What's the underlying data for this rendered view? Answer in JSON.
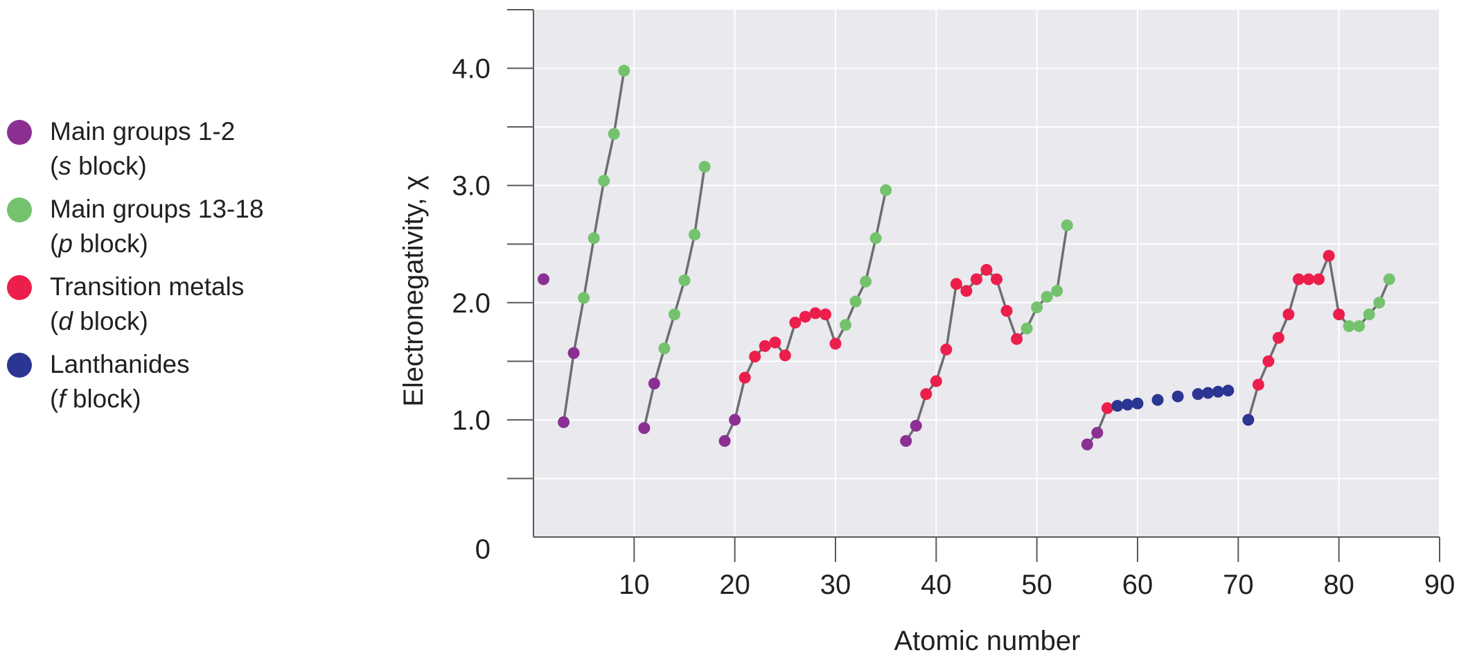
{
  "legend": [
    {
      "line1": "Main groups 1-2",
      "open": "(",
      "italic": "s",
      "rest": " block)",
      "color": "#8b2f93"
    },
    {
      "line1": "Main groups 13-18",
      "open": "(",
      "italic": "p",
      "rest": " block)",
      "color": "#74c26e"
    },
    {
      "line1": "Transition metals",
      "open": "(",
      "italic": "d",
      "rest": " block)",
      "color": "#ec1e4b"
    },
    {
      "line1": "Lanthanides",
      "open": "(",
      "italic": "f",
      "rest": " block)",
      "color": "#2b3592"
    }
  ],
  "chart_data": {
    "type": "scatter",
    "title": "",
    "xlabel": "Atomic number",
    "ylabel": "Electronegativity, χ",
    "xlim": [
      0,
      90
    ],
    "ylim": [
      0,
      4.5
    ],
    "x_ticks": [
      10,
      20,
      30,
      40,
      50,
      60,
      70,
      80,
      90
    ],
    "x_tick_labels": [
      "10",
      "20",
      "30",
      "40",
      "50",
      "60",
      "70",
      "80",
      "90"
    ],
    "y_ticks": [
      0,
      1.0,
      2.0,
      3.0,
      4.0
    ],
    "y_tick_labels": [
      "0",
      "1.0",
      "2.0",
      "3.0",
      "4.0"
    ],
    "y_minor_ticks": [
      0.5,
      1.5,
      2.5,
      3.5
    ],
    "grid": true,
    "legend_position": "left",
    "colors": {
      "s": "#8b2f93",
      "p": "#74c26e",
      "d": "#ec1e4b",
      "f": "#2b3592",
      "line": "#6d6e71",
      "plot_bg": "#e9e9ee"
    },
    "points": [
      {
        "x": 1,
        "y": 2.2,
        "block": "s"
      },
      {
        "x": 3,
        "y": 0.98,
        "block": "s"
      },
      {
        "x": 4,
        "y": 1.57,
        "block": "s"
      },
      {
        "x": 5,
        "y": 2.04,
        "block": "p"
      },
      {
        "x": 6,
        "y": 2.55,
        "block": "p"
      },
      {
        "x": 7,
        "y": 3.04,
        "block": "p"
      },
      {
        "x": 8,
        "y": 3.44,
        "block": "p"
      },
      {
        "x": 9,
        "y": 3.98,
        "block": "p"
      },
      {
        "x": 11,
        "y": 0.93,
        "block": "s"
      },
      {
        "x": 12,
        "y": 1.31,
        "block": "s"
      },
      {
        "x": 13,
        "y": 1.61,
        "block": "p"
      },
      {
        "x": 14,
        "y": 1.9,
        "block": "p"
      },
      {
        "x": 15,
        "y": 2.19,
        "block": "p"
      },
      {
        "x": 16,
        "y": 2.58,
        "block": "p"
      },
      {
        "x": 17,
        "y": 3.16,
        "block": "p"
      },
      {
        "x": 19,
        "y": 0.82,
        "block": "s"
      },
      {
        "x": 20,
        "y": 1.0,
        "block": "s"
      },
      {
        "x": 21,
        "y": 1.36,
        "block": "d"
      },
      {
        "x": 22,
        "y": 1.54,
        "block": "d"
      },
      {
        "x": 23,
        "y": 1.63,
        "block": "d"
      },
      {
        "x": 24,
        "y": 1.66,
        "block": "d"
      },
      {
        "x": 25,
        "y": 1.55,
        "block": "d"
      },
      {
        "x": 26,
        "y": 1.83,
        "block": "d"
      },
      {
        "x": 27,
        "y": 1.88,
        "block": "d"
      },
      {
        "x": 28,
        "y": 1.91,
        "block": "d"
      },
      {
        "x": 29,
        "y": 1.9,
        "block": "d"
      },
      {
        "x": 30,
        "y": 1.65,
        "block": "d"
      },
      {
        "x": 31,
        "y": 1.81,
        "block": "p"
      },
      {
        "x": 32,
        "y": 2.01,
        "block": "p"
      },
      {
        "x": 33,
        "y": 2.18,
        "block": "p"
      },
      {
        "x": 34,
        "y": 2.55,
        "block": "p"
      },
      {
        "x": 35,
        "y": 2.96,
        "block": "p"
      },
      {
        "x": 37,
        "y": 0.82,
        "block": "s"
      },
      {
        "x": 38,
        "y": 0.95,
        "block": "s"
      },
      {
        "x": 39,
        "y": 1.22,
        "block": "d"
      },
      {
        "x": 40,
        "y": 1.33,
        "block": "d"
      },
      {
        "x": 41,
        "y": 1.6,
        "block": "d"
      },
      {
        "x": 42,
        "y": 2.16,
        "block": "d"
      },
      {
        "x": 43,
        "y": 2.1,
        "block": "d"
      },
      {
        "x": 44,
        "y": 2.2,
        "block": "d"
      },
      {
        "x": 45,
        "y": 2.28,
        "block": "d"
      },
      {
        "x": 46,
        "y": 2.2,
        "block": "d"
      },
      {
        "x": 47,
        "y": 1.93,
        "block": "d"
      },
      {
        "x": 48,
        "y": 1.69,
        "block": "d"
      },
      {
        "x": 49,
        "y": 1.78,
        "block": "p"
      },
      {
        "x": 50,
        "y": 1.96,
        "block": "p"
      },
      {
        "x": 51,
        "y": 2.05,
        "block": "p"
      },
      {
        "x": 52,
        "y": 2.1,
        "block": "p"
      },
      {
        "x": 53,
        "y": 2.66,
        "block": "p"
      },
      {
        "x": 55,
        "y": 0.79,
        "block": "s"
      },
      {
        "x": 56,
        "y": 0.89,
        "block": "s"
      },
      {
        "x": 57,
        "y": 1.1,
        "block": "d"
      },
      {
        "x": 58,
        "y": 1.12,
        "block": "f"
      },
      {
        "x": 59,
        "y": 1.13,
        "block": "f"
      },
      {
        "x": 60,
        "y": 1.14,
        "block": "f"
      },
      {
        "x": 62,
        "y": 1.17,
        "block": "f"
      },
      {
        "x": 64,
        "y": 1.2,
        "block": "f"
      },
      {
        "x": 66,
        "y": 1.22,
        "block": "f"
      },
      {
        "x": 67,
        "y": 1.23,
        "block": "f"
      },
      {
        "x": 68,
        "y": 1.24,
        "block": "f"
      },
      {
        "x": 69,
        "y": 1.25,
        "block": "f"
      },
      {
        "x": 71,
        "y": 1.0,
        "block": "f"
      },
      {
        "x": 72,
        "y": 1.3,
        "block": "d"
      },
      {
        "x": 73,
        "y": 1.5,
        "block": "d"
      },
      {
        "x": 74,
        "y": 1.7,
        "block": "d"
      },
      {
        "x": 75,
        "y": 1.9,
        "block": "d"
      },
      {
        "x": 76,
        "y": 2.2,
        "block": "d"
      },
      {
        "x": 77,
        "y": 2.2,
        "block": "d"
      },
      {
        "x": 78,
        "y": 2.2,
        "block": "d"
      },
      {
        "x": 79,
        "y": 2.4,
        "block": "d"
      },
      {
        "x": 80,
        "y": 1.9,
        "block": "d"
      },
      {
        "x": 81,
        "y": 1.8,
        "block": "p"
      },
      {
        "x": 82,
        "y": 1.8,
        "block": "p"
      },
      {
        "x": 83,
        "y": 1.9,
        "block": "p"
      },
      {
        "x": 84,
        "y": 2.0,
        "block": "p"
      },
      {
        "x": 85,
        "y": 2.2,
        "block": "p"
      }
    ],
    "line_segments": [
      [
        3,
        4,
        5,
        6,
        7,
        8,
        9
      ],
      [
        11,
        12,
        13,
        14,
        15,
        16,
        17
      ],
      [
        19,
        20,
        21,
        22,
        23,
        24,
        25,
        26,
        27,
        28,
        29,
        30,
        31,
        32,
        33,
        34,
        35
      ],
      [
        37,
        38,
        39,
        40,
        41,
        42,
        43,
        44,
        45,
        46,
        47,
        48,
        49,
        50,
        51,
        52,
        53
      ],
      [
        55,
        56,
        57
      ],
      [
        71,
        72,
        73,
        74,
        75,
        76,
        77,
        78,
        79,
        80,
        81,
        82,
        83,
        84,
        85
      ]
    ]
  }
}
